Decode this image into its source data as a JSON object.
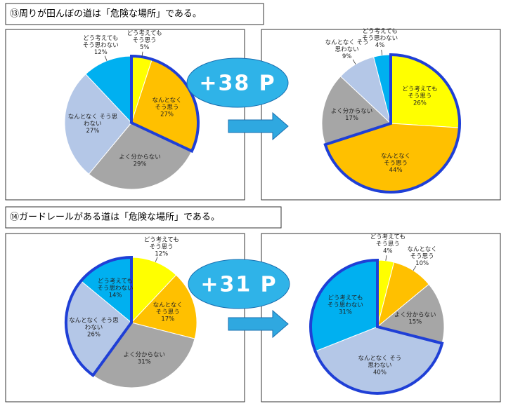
{
  "sections": [
    {
      "title": "⑬周りが田んぼの道は「危険な場所」である。",
      "badge": "+38 P",
      "charts": [
        {
          "type": "pie",
          "labels": [
            [
              "どう考えても",
              "そう思う"
            ],
            [
              "なんとなく",
              "そう思う"
            ],
            [
              "よく分からない"
            ],
            [
              "なんとなく そう思",
              "わない"
            ],
            [
              "どう考えても",
              "そう思わない"
            ]
          ],
          "values": [
            5,
            27,
            29,
            27,
            12
          ],
          "value_labels": [
            "5%",
            "27%",
            "29%",
            "27%",
            "12%"
          ],
          "colors": [
            "#ffff00",
            "#ffc000",
            "#a6a6a6",
            "#b4c7e7",
            "#00b0f0"
          ],
          "highlight": [
            0,
            1
          ]
        },
        {
          "type": "pie",
          "labels": [
            [
              "どう考えても",
              "そう思う"
            ],
            [
              "なんとなく",
              "そう思う"
            ],
            [
              "よく分からない"
            ],
            [
              "なんとなく そう",
              "思わない"
            ],
            [
              "どう考えても",
              "そう思わない"
            ]
          ],
          "values": [
            26,
            44,
            17,
            9,
            4
          ],
          "value_labels": [
            "26%",
            "44%",
            "17%",
            "9%",
            "4%"
          ],
          "colors": [
            "#ffff00",
            "#ffc000",
            "#a6a6a6",
            "#b4c7e7",
            "#00b0f0"
          ],
          "highlight": [
            0,
            1
          ]
        }
      ]
    },
    {
      "title": "⑭ガードレールがある道は「危険な場所」である。",
      "badge": "+31 P",
      "charts": [
        {
          "type": "pie",
          "labels": [
            [
              "どう考えても",
              "そう思う"
            ],
            [
              "なんとなく",
              "そう思う"
            ],
            [
              "よく分からない"
            ],
            [
              "なんとなく そう思",
              "わない"
            ],
            [
              "どう考えても",
              "そう思わない"
            ]
          ],
          "values": [
            12,
            17,
            31,
            26,
            14
          ],
          "value_labels": [
            "12%",
            "17%",
            "31%",
            "26%",
            "14%"
          ],
          "colors": [
            "#ffff00",
            "#ffc000",
            "#a6a6a6",
            "#b4c7e7",
            "#00b0f0"
          ],
          "highlight": [
            3,
            4
          ]
        },
        {
          "type": "pie",
          "labels": [
            [
              "どう考えても",
              "そう思う"
            ],
            [
              "なんとなく",
              "そう思う"
            ],
            [
              "よく分からない"
            ],
            [
              "なんとなく そう",
              "思わない"
            ],
            [
              "どう考えても",
              "そう思わない"
            ]
          ],
          "values": [
            4,
            10,
            15,
            40,
            31
          ],
          "value_labels": [
            "4%",
            "10%",
            "15%",
            "40%",
            "31%"
          ],
          "colors": [
            "#ffff00",
            "#ffc000",
            "#a6a6a6",
            "#b4c7e7",
            "#00b0f0"
          ],
          "highlight": [
            3,
            4
          ]
        }
      ]
    }
  ]
}
